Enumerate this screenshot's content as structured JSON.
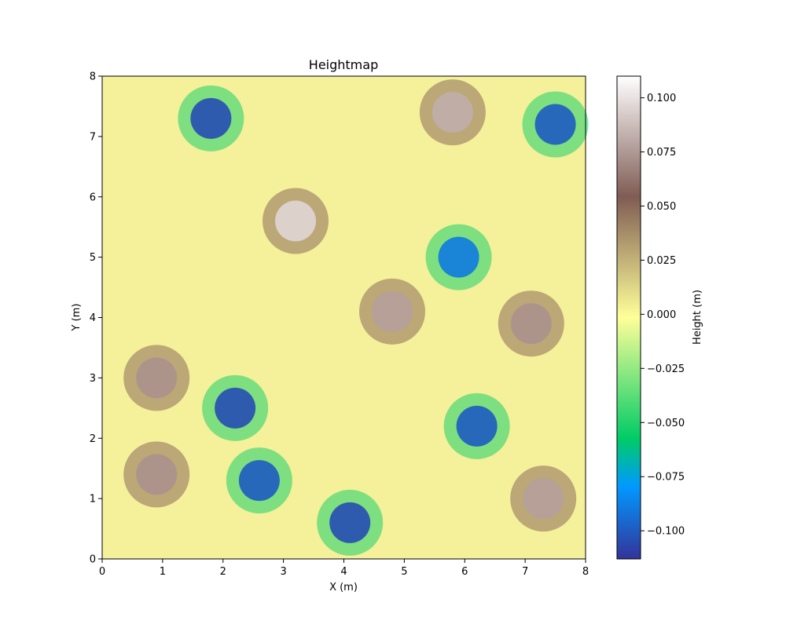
{
  "chart_data": {
    "type": "heatmap",
    "title": "Heightmap",
    "xlabel": "X (m)",
    "ylabel": "Y (m)",
    "xlim": [
      0,
      8
    ],
    "ylim": [
      0,
      8
    ],
    "x_ticks": [
      "0",
      "1",
      "2",
      "3",
      "4",
      "5",
      "6",
      "7",
      "8"
    ],
    "y_ticks": [
      "0",
      "1",
      "2",
      "3",
      "4",
      "5",
      "6",
      "7",
      "8"
    ],
    "colormap": "terrain",
    "colorbar": {
      "label": "Height (m)",
      "range": [
        -0.113,
        0.11
      ],
      "ticks": [
        "−0.100",
        "−0.075",
        "−0.050",
        "−0.025",
        "0.000",
        "0.025",
        "0.050",
        "0.075",
        "0.100"
      ],
      "tick_values": [
        -0.1,
        -0.075,
        -0.05,
        -0.025,
        0.0,
        0.025,
        0.05,
        0.075,
        0.1
      ]
    },
    "grid": false,
    "features": [
      {
        "kind": "peak",
        "x": 3.2,
        "y": 5.6,
        "height": 0.095
      },
      {
        "kind": "peak",
        "x": 5.8,
        "y": 7.4,
        "height": 0.08
      },
      {
        "kind": "peak",
        "x": 4.8,
        "y": 4.1,
        "height": 0.075
      },
      {
        "kind": "peak",
        "x": 7.1,
        "y": 3.9,
        "height": 0.07
      },
      {
        "kind": "peak",
        "x": 0.9,
        "y": 3.0,
        "height": 0.07
      },
      {
        "kind": "peak",
        "x": 7.3,
        "y": 1.0,
        "height": 0.075
      },
      {
        "kind": "peak",
        "x": 0.9,
        "y": 1.4,
        "height": 0.07
      },
      {
        "kind": "basin",
        "x": 1.8,
        "y": 7.3,
        "height": -0.105
      },
      {
        "kind": "basin",
        "x": 7.5,
        "y": 7.2,
        "height": -0.1
      },
      {
        "kind": "basin",
        "x": 2.2,
        "y": 2.5,
        "height": -0.105
      },
      {
        "kind": "basin",
        "x": 2.6,
        "y": 1.3,
        "height": -0.1
      },
      {
        "kind": "basin",
        "x": 4.1,
        "y": 0.6,
        "height": -0.105
      },
      {
        "kind": "basin",
        "x": 6.2,
        "y": 2.2,
        "height": -0.1
      },
      {
        "kind": "basin",
        "x": 5.9,
        "y": 5.0,
        "height": -0.09
      }
    ]
  }
}
